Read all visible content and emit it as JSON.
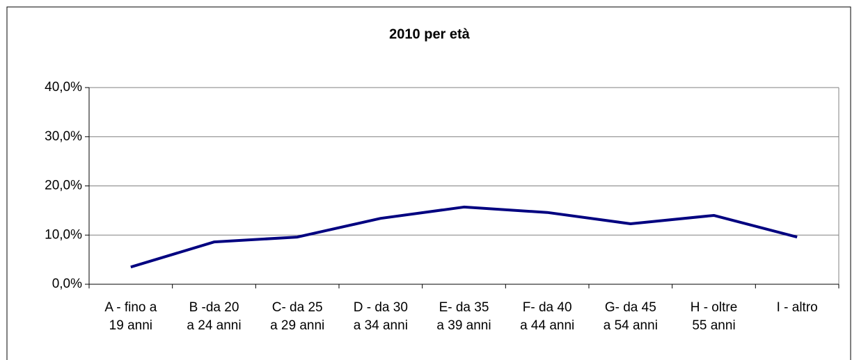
{
  "chart_data": {
    "type": "line",
    "title": "2010 per età",
    "categories": [
      "A - fino a\n19 anni",
      "B -da 20\na 24 anni",
      "C- da 25\na 29 anni",
      "D - da 30\na 34 anni",
      "E- da 35\na 39 anni",
      "F- da 40\na 44 anni",
      "G- da 45\na 54 anni",
      "H - oltre\n55 anni",
      "I - altro"
    ],
    "series": [
      {
        "name": "2010",
        "color": "#000080",
        "values": [
          3.5,
          8.6,
          9.6,
          13.4,
          15.7,
          14.6,
          12.3,
          14.0,
          9.6
        ]
      }
    ],
    "ylim": [
      0,
      40
    ],
    "yticks": [
      {
        "value": 0,
        "label": "0,0%"
      },
      {
        "value": 10,
        "label": "10,0%"
      },
      {
        "value": 20,
        "label": "20,0%"
      },
      {
        "value": 30,
        "label": "30,0%"
      },
      {
        "value": 40,
        "label": "40,0%"
      }
    ],
    "grid": true
  }
}
